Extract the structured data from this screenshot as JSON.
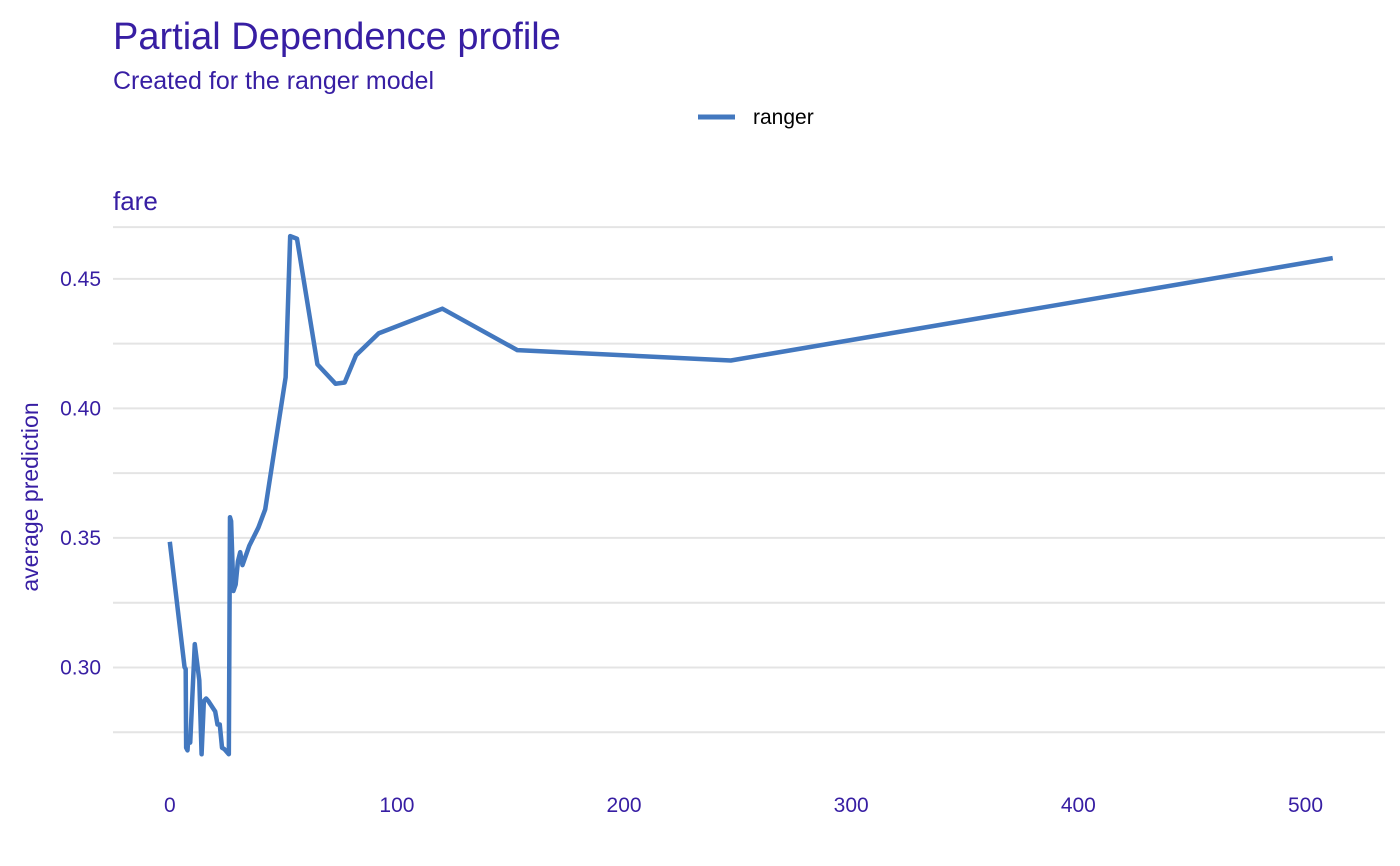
{
  "chart_data": {
    "type": "line",
    "title": "Partial Dependence profile",
    "subtitle": "Created for the ranger model",
    "facet_label": "fare",
    "xlabel": "",
    "ylabel": "average prediction",
    "xlim": [
      -25,
      535
    ],
    "ylim": [
      0.2635,
      0.4735
    ],
    "x_ticks": [
      0,
      100,
      200,
      300,
      400,
      500
    ],
    "x_tick_labels": [
      "0",
      "100",
      "200",
      "300",
      "400",
      "500"
    ],
    "y_ticks": [
      0.3,
      0.35,
      0.4,
      0.45
    ],
    "y_tick_labels": [
      "0.30",
      "0.35",
      "0.40",
      "0.45"
    ],
    "y_minor_ticks": [
      0.275,
      0.325,
      0.375,
      0.425,
      0.47
    ],
    "grid": true,
    "legend": {
      "position": "top-center",
      "entries": [
        "ranger"
      ]
    },
    "series": [
      {
        "name": "ranger",
        "x": [
          0,
          6.5,
          7,
          7.2,
          7.8,
          8.1,
          9,
          11,
          13,
          14,
          15,
          16,
          17,
          20,
          21,
          22,
          23,
          24,
          26,
          26.5,
          27,
          28,
          29,
          30,
          31,
          32,
          35,
          39,
          42,
          51,
          53,
          56,
          65,
          73,
          77,
          82,
          92,
          120,
          153,
          247,
          512
        ],
        "y": [
          0.3485,
          0.3001,
          0.2994,
          0.269,
          0.268,
          0.272,
          0.271,
          0.309,
          0.295,
          0.2665,
          0.287,
          0.288,
          0.287,
          0.283,
          0.278,
          0.278,
          0.269,
          0.2685,
          0.2665,
          0.358,
          0.3565,
          0.3295,
          0.332,
          0.341,
          0.3445,
          0.3395,
          0.347,
          0.354,
          0.361,
          0.412,
          0.4665,
          0.4655,
          0.417,
          0.4095,
          0.41,
          0.4205,
          0.429,
          0.4385,
          0.4225,
          0.4185,
          0.458
        ],
        "color": "#4378bf"
      }
    ]
  },
  "colors": {
    "title": "#371ea3",
    "series": "#4378bf",
    "grid": "#e4e4e4",
    "legend_text": "#000000"
  }
}
